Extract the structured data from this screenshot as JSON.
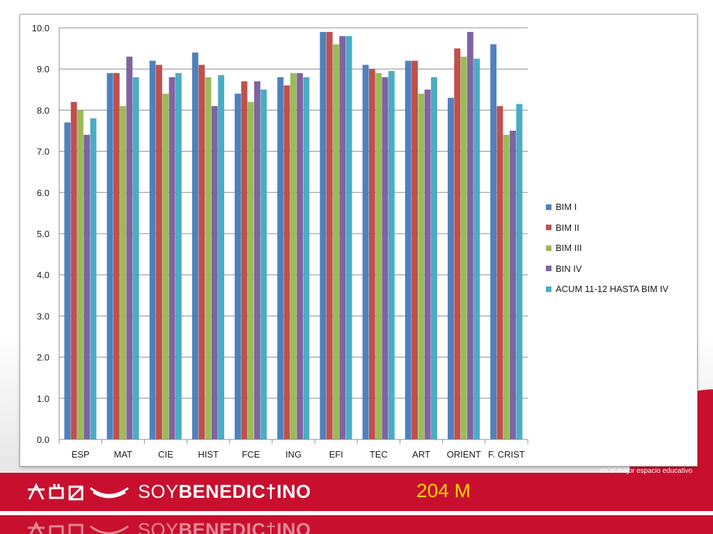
{
  "chart_data": {
    "type": "bar",
    "categories": [
      "ESP",
      "MAT",
      "CIE",
      "HIST",
      "FCE",
      "ING",
      "EFI",
      "TEC",
      "ART",
      "ORIENT",
      "F. CRIST"
    ],
    "series": [
      {
        "name": "BIM I",
        "color": "#4f81bd",
        "values": [
          7.7,
          8.9,
          9.2,
          9.4,
          8.4,
          8.8,
          9.9,
          9.1,
          9.2,
          8.3,
          9.6
        ]
      },
      {
        "name": "BIM II",
        "color": "#c0504d",
        "values": [
          8.2,
          8.9,
          9.1,
          9.1,
          8.7,
          8.6,
          9.9,
          9.0,
          9.2,
          9.5,
          8.1
        ]
      },
      {
        "name": "BIM III",
        "color": "#9bbb59",
        "values": [
          8.0,
          8.1,
          8.4,
          8.8,
          8.2,
          8.9,
          9.6,
          8.9,
          8.4,
          9.3,
          7.4
        ]
      },
      {
        "name": "BIN IV",
        "color": "#8064a2",
        "values": [
          7.4,
          9.3,
          8.8,
          8.1,
          8.7,
          8.9,
          9.8,
          8.8,
          8.5,
          9.9,
          7.5
        ]
      },
      {
        "name": "ACUM 11-12 HASTA BIM IV",
        "color": "#4bacc6",
        "values": [
          7.8,
          8.8,
          8.9,
          8.85,
          8.5,
          8.8,
          9.8,
          8.95,
          8.8,
          9.25,
          8.15
        ]
      }
    ],
    "ylim": [
      0,
      10
    ],
    "yticks": [
      "0.0",
      "1.0",
      "2.0",
      "3.0",
      "4.0",
      "5.0",
      "6.0",
      "7.0",
      "8.0",
      "9.0",
      "10.0"
    ],
    "grid": true,
    "legend_position": "right",
    "title": "",
    "xlabel": "",
    "ylabel": ""
  },
  "footer": {
    "tagline": "en el mejor espacio educativo",
    "brand_light": "SOY",
    "brand_bold_1": "BENEDIC",
    "brand_bold_2": "INO",
    "group_code": "204 M"
  }
}
